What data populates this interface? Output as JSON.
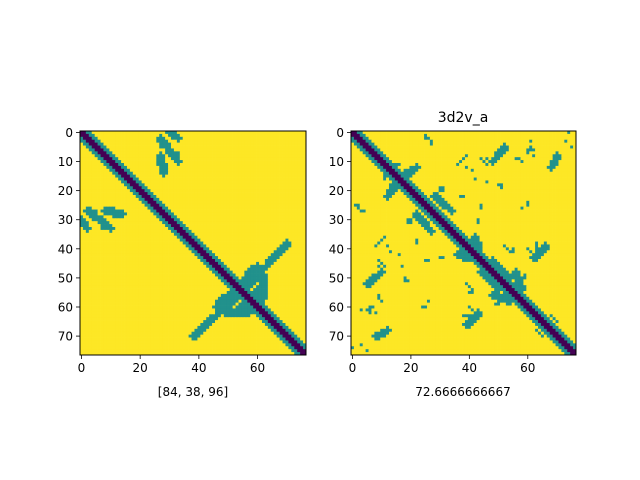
{
  "chart_data": [
    {
      "type": "heatmap",
      "title": "",
      "xlabel": "[84, 38, 96]",
      "ylabel": "",
      "size": 77,
      "xlim": [
        -0.5,
        76.5
      ],
      "ylim": [
        76.5,
        -0.5
      ],
      "x_ticks": [
        "0",
        "20",
        "40",
        "60"
      ],
      "y_ticks": [
        "0",
        "10",
        "20",
        "30",
        "40",
        "50",
        "60",
        "70"
      ],
      "levels": {
        "background": 2,
        "contact": 1,
        "diagonal": 0
      },
      "colors": {
        "0": "#440154",
        "1": "#21918c",
        "2": "#fde725"
      },
      "diagonal_core_halfwidth": 1,
      "diagonal_halo_halfwidth": 3,
      "contact_segments": [
        {
          "from": [
            2,
            27
          ],
          "to": [
            10,
            33
          ],
          "halfwidth": 1
        },
        {
          "from": [
            30,
            0
          ],
          "to": [
            33,
            2
          ],
          "halfwidth": 1
        },
        {
          "from": [
            8,
            27
          ],
          "to": [
            14,
            28
          ],
          "halfwidth": 1
        },
        {
          "from": [
            38,
            70
          ],
          "to": [
            52,
            57
          ],
          "halfwidth": 1
        },
        {
          "from": [
            52,
            57
          ],
          "to": [
            58,
            47
          ],
          "halfwidth": 1
        },
        {
          "from": [
            46,
            60
          ],
          "to": [
            52,
            58
          ],
          "halfwidth": 1
        },
        {
          "from": [
            55,
            60
          ],
          "to": [
            62,
            52
          ],
          "halfwidth": 1
        },
        {
          "from": [
            49,
            62
          ],
          "to": [
            57,
            62
          ],
          "halfwidth": 1
        }
      ],
      "contact_cells": [
        [
          27,
          4
        ],
        [
          28,
          4
        ],
        [
          27,
          5
        ],
        [
          33,
          7
        ]
      ]
    },
    {
      "type": "heatmap",
      "title": "3d2v_a",
      "xlabel": "72.6666666667",
      "ylabel": "",
      "size": 77,
      "xlim": [
        -0.5,
        76.5
      ],
      "ylim": [
        76.5,
        -0.5
      ],
      "x_ticks": [
        "0",
        "20",
        "40",
        "60"
      ],
      "y_ticks": [
        "0",
        "10",
        "20",
        "30",
        "40",
        "50",
        "60",
        "70"
      ],
      "levels": {
        "background": 2,
        "contact": 1,
        "diagonal": 0
      },
      "colors": {
        "0": "#440154",
        "1": "#21918c",
        "2": "#fde725"
      },
      "diagonal_core_halfwidth": 1,
      "diagonal_halo_halfwidth": 3,
      "contact_segments": [
        {
          "from": [
            17,
            15
          ],
          "to": [
            22,
            12
          ],
          "halfwidth": 1
        },
        {
          "from": [
            28,
            22
          ],
          "to": [
            34,
            27
          ],
          "halfwidth": 1
        },
        {
          "from": [
            36,
            42
          ],
          "to": [
            44,
            44
          ],
          "halfwidth": 1
        },
        {
          "from": [
            44,
            48
          ],
          "to": [
            50,
            54
          ],
          "halfwidth": 1
        },
        {
          "from": [
            48,
            56
          ],
          "to": [
            54,
            58
          ],
          "halfwidth": 1
        },
        {
          "from": [
            62,
            43
          ],
          "to": [
            66,
            39
          ],
          "halfwidth": 1
        },
        {
          "from": [
            5,
            52
          ],
          "to": [
            10,
            48
          ],
          "halfwidth": 1
        },
        {
          "from": [
            8,
            70
          ],
          "to": [
            12,
            68
          ],
          "halfwidth": 1
        },
        {
          "from": [
            38,
            63
          ],
          "to": [
            44,
            62
          ],
          "halfwidth": 0
        }
      ],
      "contact_cells": [
        [
          6,
          60
        ],
        [
          7,
          60
        ],
        [
          3,
          61
        ],
        [
          5,
          61
        ],
        [
          45,
          10
        ],
        [
          46,
          11
        ],
        [
          46,
          9
        ],
        [
          44,
          9
        ],
        [
          30,
          19
        ],
        [
          31,
          19
        ],
        [
          30,
          20
        ],
        [
          31,
          20
        ],
        [
          39,
          12
        ],
        [
          41,
          13
        ],
        [
          42,
          16
        ],
        [
          56,
          9
        ],
        [
          57,
          9
        ],
        [
          58,
          10
        ],
        [
          61,
          6
        ],
        [
          62,
          6
        ],
        [
          62,
          8
        ],
        [
          73,
          3
        ],
        [
          74,
          0
        ],
        [
          75,
          5
        ],
        [
          19,
          17
        ],
        [
          20,
          17
        ],
        [
          21,
          18
        ],
        [
          11,
          36
        ],
        [
          10,
          37
        ],
        [
          9,
          38
        ],
        [
          8,
          39
        ],
        [
          18,
          50
        ],
        [
          18,
          51
        ],
        [
          19,
          51
        ],
        [
          17,
          46
        ],
        [
          22,
          37
        ],
        [
          22,
          38
        ],
        [
          30,
          43
        ],
        [
          31,
          43
        ],
        [
          44,
          25
        ],
        [
          44,
          26
        ],
        [
          52,
          39
        ],
        [
          53,
          40
        ],
        [
          60,
          40
        ],
        [
          61,
          41
        ],
        [
          62,
          42
        ],
        [
          24,
          60
        ],
        [
          25,
          60
        ],
        [
          26,
          58
        ],
        [
          41,
          54
        ],
        [
          41,
          55
        ],
        [
          40,
          55
        ],
        [
          49,
          59
        ],
        [
          50,
          59
        ],
        [
          59,
          60
        ],
        [
          60,
          60
        ],
        [
          61,
          61
        ],
        [
          15,
          11
        ],
        [
          16,
          11
        ],
        [
          68,
          63
        ],
        [
          69,
          64
        ],
        [
          70,
          65
        ],
        [
          1,
          25
        ],
        [
          2,
          25
        ],
        [
          2,
          26
        ],
        [
          3,
          27
        ],
        [
          4,
          27
        ]
      ]
    }
  ]
}
